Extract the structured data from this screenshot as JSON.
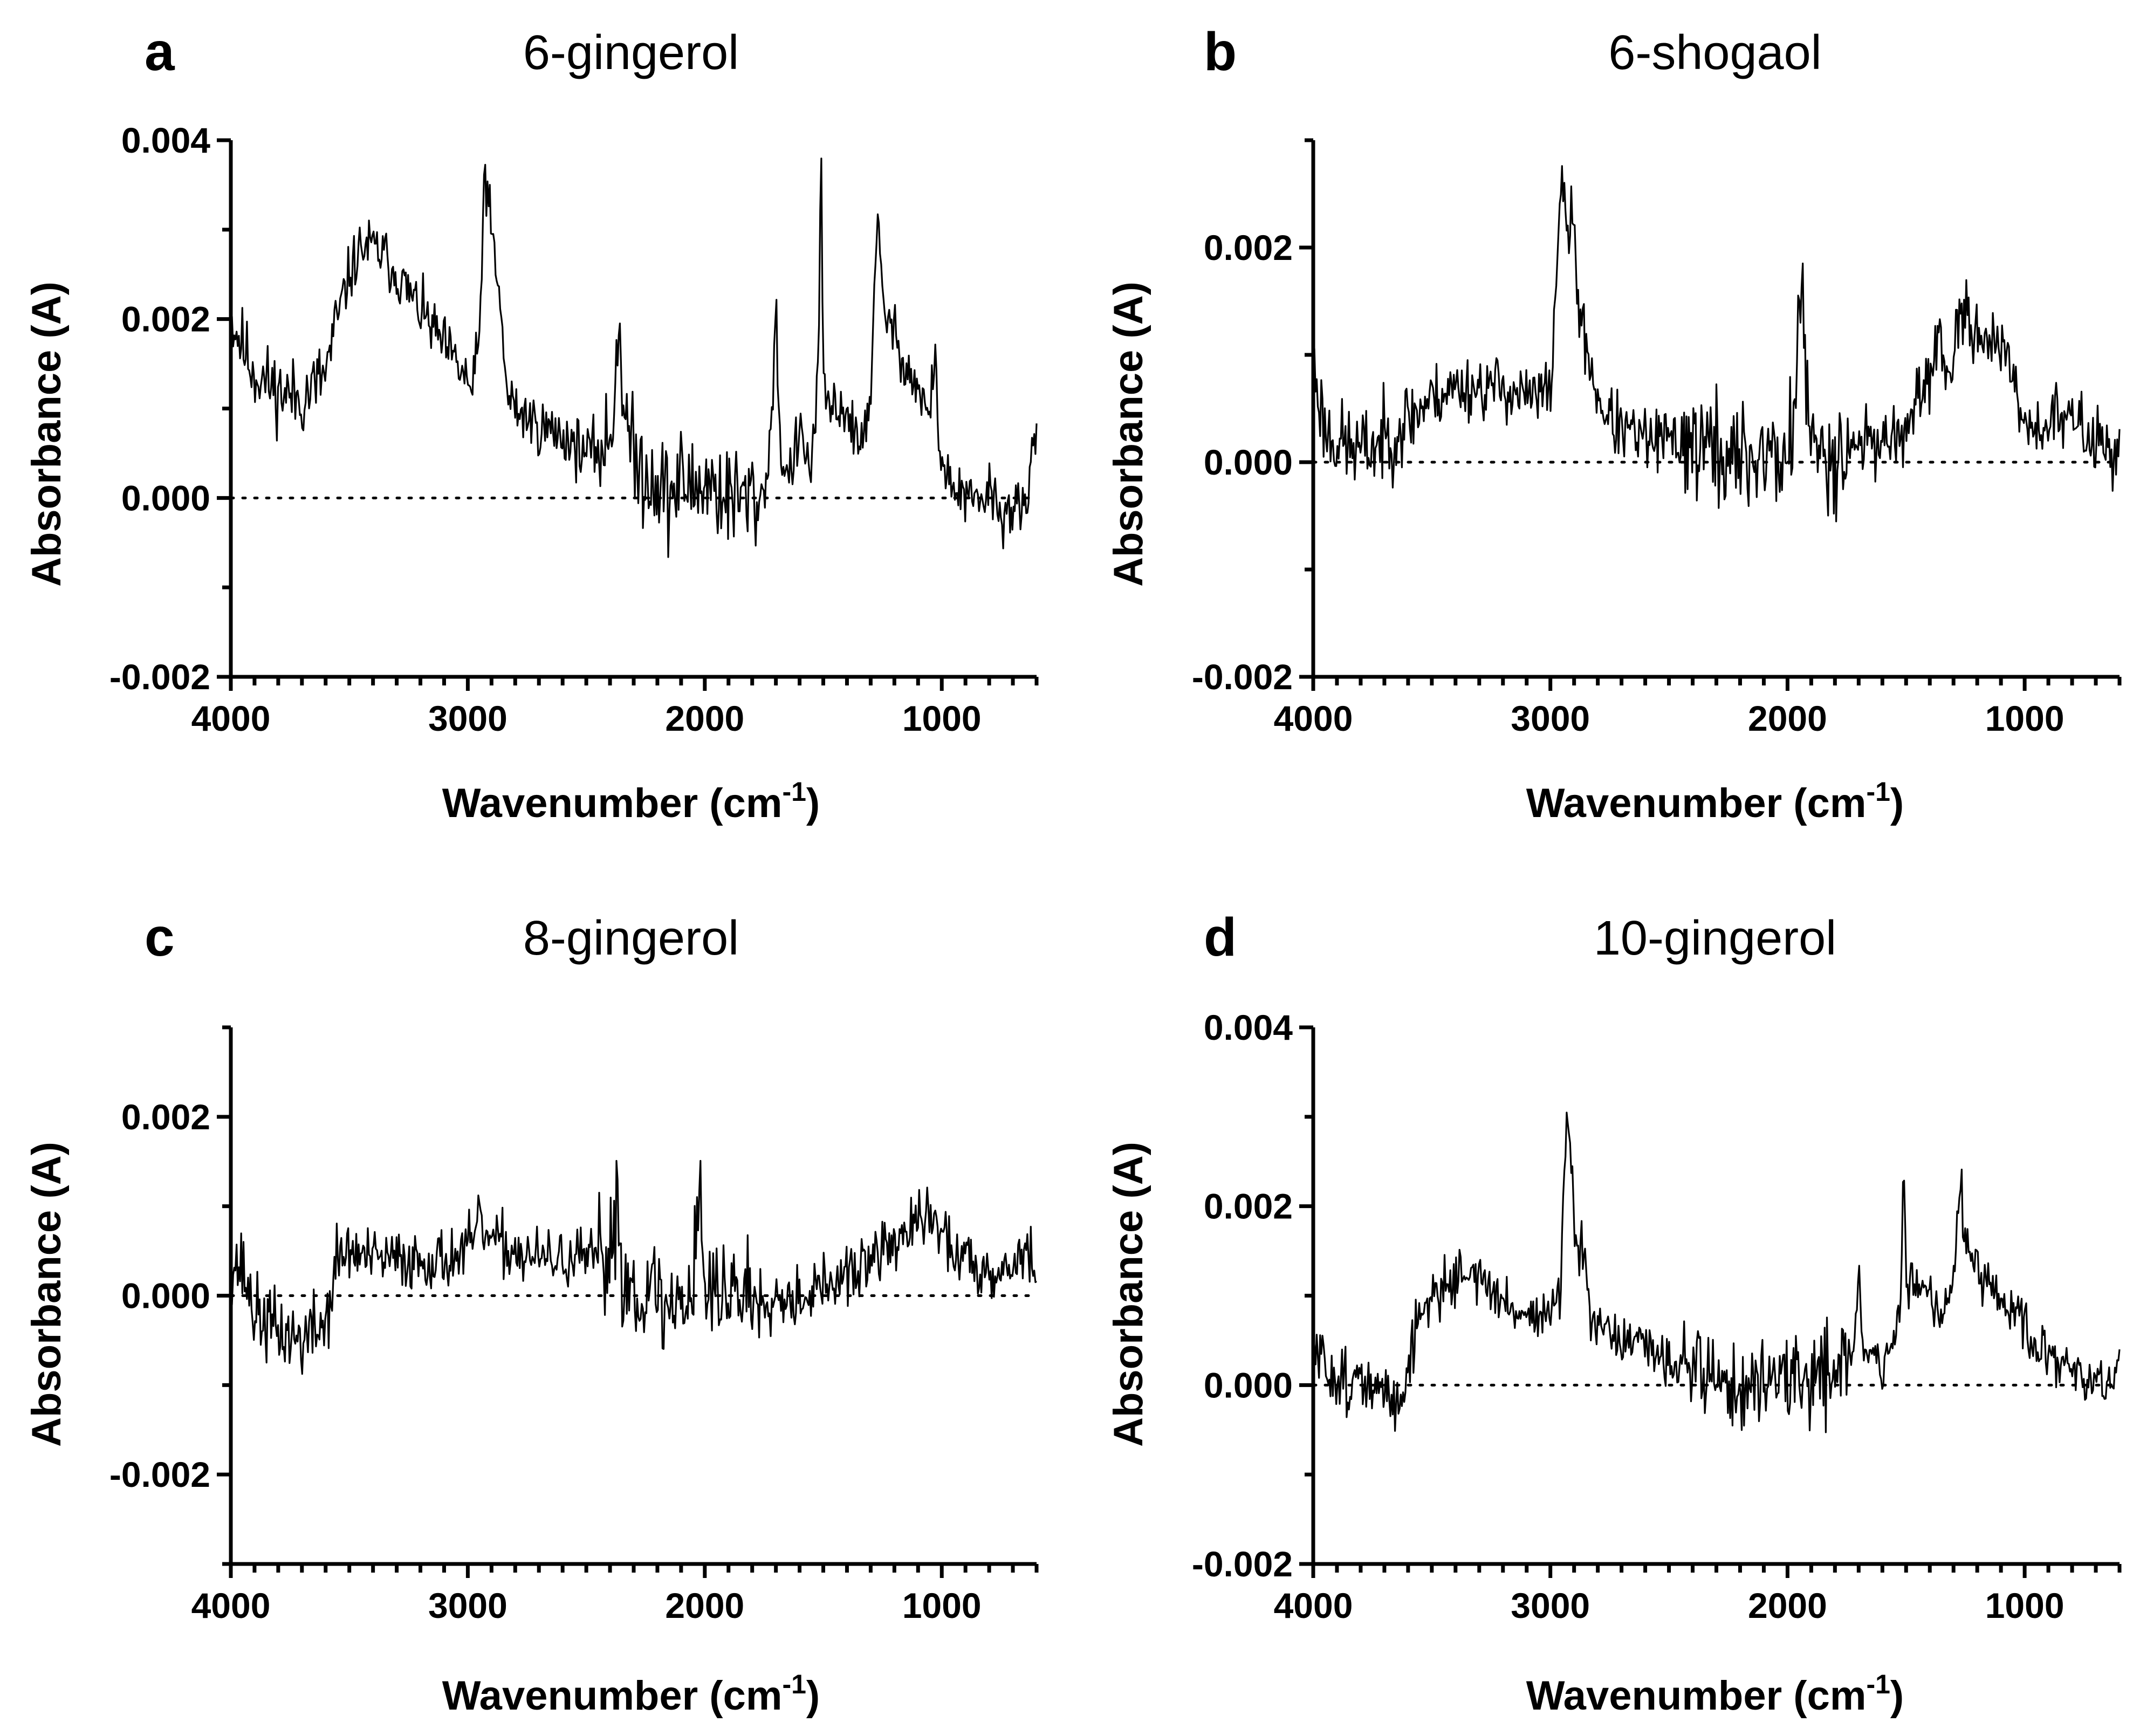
{
  "chart_data": [
    {
      "type": "line",
      "panel_letter": "a",
      "title": "6-gingerol",
      "xlabel": "Wavenumber (cm",
      "xlabel_sup": "-1",
      "xlabel_close": ")",
      "ylabel": "Absorbance (A)",
      "xlim": [
        4000,
        600
      ],
      "ylim": [
        -0.002,
        0.004
      ],
      "xticks": [
        4000,
        3000,
        2000,
        1000
      ],
      "xtick_labels": [
        "4000",
        "3000",
        "2000",
        "1000"
      ],
      "yticks": [
        -0.002,
        0.0,
        0.002,
        0.004
      ],
      "ytick_labels": [
        "-0.002",
        "0.000",
        "0.002",
        "0.004"
      ],
      "baseline": 0,
      "noise": 0.00048,
      "seed": 11,
      "series": [
        {
          "name": "6-gingerol",
          "x": [
            4000,
            3900,
            3800,
            3700,
            3600,
            3550,
            3500,
            3450,
            3400,
            3350,
            3300,
            3200,
            3100,
            3000,
            2980,
            2950,
            2930,
            2900,
            2880,
            2860,
            2840,
            2800,
            2700,
            2600,
            2500,
            2400,
            2360,
            2340,
            2300,
            2200,
            2150,
            2100,
            2050,
            2000,
            1950,
            1900,
            1850,
            1800,
            1750,
            1720,
            1700,
            1680,
            1650,
            1600,
            1550,
            1520,
            1510,
            1500,
            1470,
            1450,
            1400,
            1350,
            1300,
            1270,
            1250,
            1200,
            1150,
            1100,
            1050,
            1030,
            1010,
            980,
            950,
            900,
            850,
            800,
            750,
            700,
            650,
            600
          ],
          "values": [
            0.002,
            0.0014,
            0.0012,
            0.0011,
            0.0014,
            0.002,
            0.0025,
            0.0028,
            0.0028,
            0.0027,
            0.0025,
            0.0021,
            0.0017,
            0.0013,
            0.0012,
            0.0018,
            0.0037,
            0.003,
            0.0024,
            0.0022,
            0.0012,
            0.001,
            0.0008,
            0.0007,
            0.0005,
            0.0006,
            0.002,
            0.001,
            0.0004,
            0.0002,
            0.0,
            0.0002,
            0.0001,
            0.0002,
            0.0001,
            0.0,
            0.0,
            0.0,
            0.0,
            0.0008,
            0.0021,
            0.0005,
            0.0002,
            0.0007,
            0.0003,
            0.0015,
            0.0039,
            0.0012,
            0.001,
            0.001,
            0.001,
            0.0005,
            0.0012,
            0.0031,
            0.0022,
            0.0018,
            0.0015,
            0.0012,
            0.0009,
            0.0016,
            0.0006,
            0.0002,
            0.0001,
            0.0,
            -0.0001,
            0.0001,
            -0.0002,
            -0.0001,
            -0.0002,
            0.0008
          ]
        }
      ]
    },
    {
      "type": "line",
      "panel_letter": "b",
      "title": "6-shogaol",
      "xlabel": "Wavenumber (cm",
      "xlabel_sup": "-1",
      "xlabel_close": ")",
      "ylabel": "Absorbance (A)",
      "xlim": [
        4000,
        600
      ],
      "ylim": [
        -0.002,
        0.003
      ],
      "xticks": [
        4000,
        3000,
        2000,
        1000
      ],
      "xtick_labels": [
        "4000",
        "3000",
        "2000",
        "1000"
      ],
      "yticks": [
        -0.002,
        0.0,
        0.002
      ],
      "ytick_labels": [
        "-0.002",
        "0.000",
        "0.002"
      ],
      "baseline": 0,
      "noise": 0.00045,
      "seed": 23,
      "series": [
        {
          "name": "6-shogaol",
          "x": [
            4000,
            3950,
            3900,
            3800,
            3700,
            3600,
            3500,
            3400,
            3300,
            3200,
            3100,
            3050,
            3000,
            2980,
            2960,
            2930,
            2900,
            2880,
            2850,
            2800,
            2750,
            2700,
            2600,
            2500,
            2400,
            2300,
            2200,
            2100,
            2000,
            1970,
            1950,
            1900,
            1800,
            1700,
            1600,
            1500,
            1450,
            1400,
            1370,
            1330,
            1300,
            1250,
            1200,
            1150,
            1100,
            1050,
            1000,
            950,
            900,
            800,
            700,
            600
          ],
          "values": [
            0.0009,
            0.0003,
            0.0002,
            0.0001,
            0.0002,
            0.0004,
            0.0006,
            0.0007,
            0.0007,
            0.0007,
            0.0006,
            0.0006,
            0.0007,
            0.0014,
            0.0026,
            0.0022,
            0.0022,
            0.0014,
            0.0011,
            0.0006,
            0.0004,
            0.0003,
            0.0002,
            0.0002,
            0.0002,
            0.0001,
            0.0,
            0.0001,
            0.0,
            0.0005,
            0.0017,
            0.0001,
            0.0001,
            0.0002,
            0.0002,
            0.0003,
            0.0005,
            0.0008,
            0.0012,
            0.0008,
            0.001,
            0.0014,
            0.0012,
            0.0012,
            0.001,
            0.0008,
            0.0004,
            0.0003,
            0.0004,
            0.0004,
            0.0002,
            0.0001
          ]
        }
      ]
    },
    {
      "type": "line",
      "panel_letter": "c",
      "title": "8-gingerol",
      "xlabel": "Wavenumber (cm",
      "xlabel_sup": "-1",
      "xlabel_close": ")",
      "ylabel": "Absorbance (A)",
      "xlim": [
        4000,
        600
      ],
      "ylim": [
        -0.003,
        0.003
      ],
      "xticks": [
        4000,
        3000,
        2000,
        1000
      ],
      "xtick_labels": [
        "4000",
        "3000",
        "2000",
        "1000"
      ],
      "yticks": [
        -0.002,
        0.0,
        0.002
      ],
      "ytick_labels": [
        "-0.002",
        "0.000",
        "0.002"
      ],
      "baseline": 0,
      "noise": 0.0005,
      "seed": 37,
      "series": [
        {
          "name": "8-gingerol",
          "x": [
            4000,
            3950,
            3900,
            3800,
            3700,
            3600,
            3550,
            3500,
            3400,
            3300,
            3200,
            3100,
            3000,
            2950,
            2900,
            2800,
            2700,
            2600,
            2500,
            2400,
            2370,
            2350,
            2300,
            2200,
            2150,
            2100,
            2050,
            2020,
            2000,
            1950,
            1900,
            1800,
            1700,
            1600,
            1500,
            1400,
            1300,
            1200,
            1100,
            1050,
            1000,
            950,
            900,
            800,
            700,
            650,
            600
          ],
          "values": [
            0.0004,
            0.0003,
            -0.0002,
            -0.0004,
            -0.0005,
            -0.0003,
            0.0004,
            0.0005,
            0.0004,
            0.0004,
            0.0004,
            0.0004,
            0.0005,
            0.0008,
            0.0006,
            0.0005,
            0.0004,
            0.0004,
            0.0004,
            0.0004,
            0.0012,
            0.0002,
            0.0001,
            0.0,
            -0.0002,
            0.0,
            0.0001,
            0.0014,
            0.0,
            0.0,
            0.0001,
            0.0,
            0.0,
            0.0,
            0.0001,
            0.0002,
            0.0004,
            0.0006,
            0.0008,
            0.0009,
            0.0007,
            0.0005,
            0.0004,
            0.0003,
            0.0003,
            0.0006,
            0.0002
          ]
        }
      ]
    },
    {
      "type": "line",
      "panel_letter": "d",
      "title": "10-gingerol",
      "xlabel": "Wavenumber (cm",
      "xlabel_sup": "-1",
      "xlabel_close": ")",
      "ylabel": "Absorbance (A)",
      "xlim": [
        4000,
        600
      ],
      "ylim": [
        -0.002,
        0.004
      ],
      "xticks": [
        4000,
        3000,
        2000,
        1000
      ],
      "xtick_labels": [
        "4000",
        "3000",
        "2000",
        "1000"
      ],
      "yticks": [
        -0.002,
        0.0,
        0.002,
        0.004
      ],
      "ytick_labels": [
        "-0.002",
        "0.000",
        "0.002",
        "0.004"
      ],
      "baseline": 0,
      "noise": 0.00042,
      "seed": 51,
      "series": [
        {
          "name": "10-gingerol",
          "x": [
            4000,
            3950,
            3900,
            3800,
            3700,
            3650,
            3600,
            3550,
            3500,
            3400,
            3350,
            3300,
            3200,
            3100,
            3000,
            2960,
            2940,
            2930,
            2910,
            2880,
            2860,
            2840,
            2800,
            2700,
            2600,
            2500,
            2400,
            2300,
            2200,
            2100,
            2050,
            2000,
            1950,
            1900,
            1800,
            1720,
            1700,
            1680,
            1600,
            1550,
            1520,
            1510,
            1500,
            1450,
            1400,
            1350,
            1300,
            1270,
            1250,
            1200,
            1150,
            1100,
            1050,
            1030,
            1000,
            950,
            900,
            800,
            700,
            600
          ],
          "values": [
            0.0004,
            0.0002,
            0.0001,
            0.0,
            -0.0001,
            -0.0002,
            0.0002,
            0.0008,
            0.001,
            0.0012,
            0.0013,
            0.0012,
            0.0009,
            0.0008,
            0.0008,
            0.001,
            0.0022,
            0.0032,
            0.0022,
            0.0013,
            0.0016,
            0.0008,
            0.0006,
            0.0005,
            0.0004,
            0.0003,
            0.0002,
            0.0001,
            -0.0001,
            0.0,
            0.0002,
            0.0,
            0.0,
            0.0001,
            0.0002,
            0.0004,
            0.0012,
            0.0004,
            0.0002,
            0.0005,
            0.001,
            0.0024,
            0.0012,
            0.0012,
            0.001,
            0.0008,
            0.0012,
            0.0023,
            0.0016,
            0.0012,
            0.0011,
            0.0009,
            0.0008,
            0.001,
            0.0006,
            0.0004,
            0.0003,
            0.0002,
            0.0,
            0.0001
          ]
        }
      ]
    }
  ]
}
